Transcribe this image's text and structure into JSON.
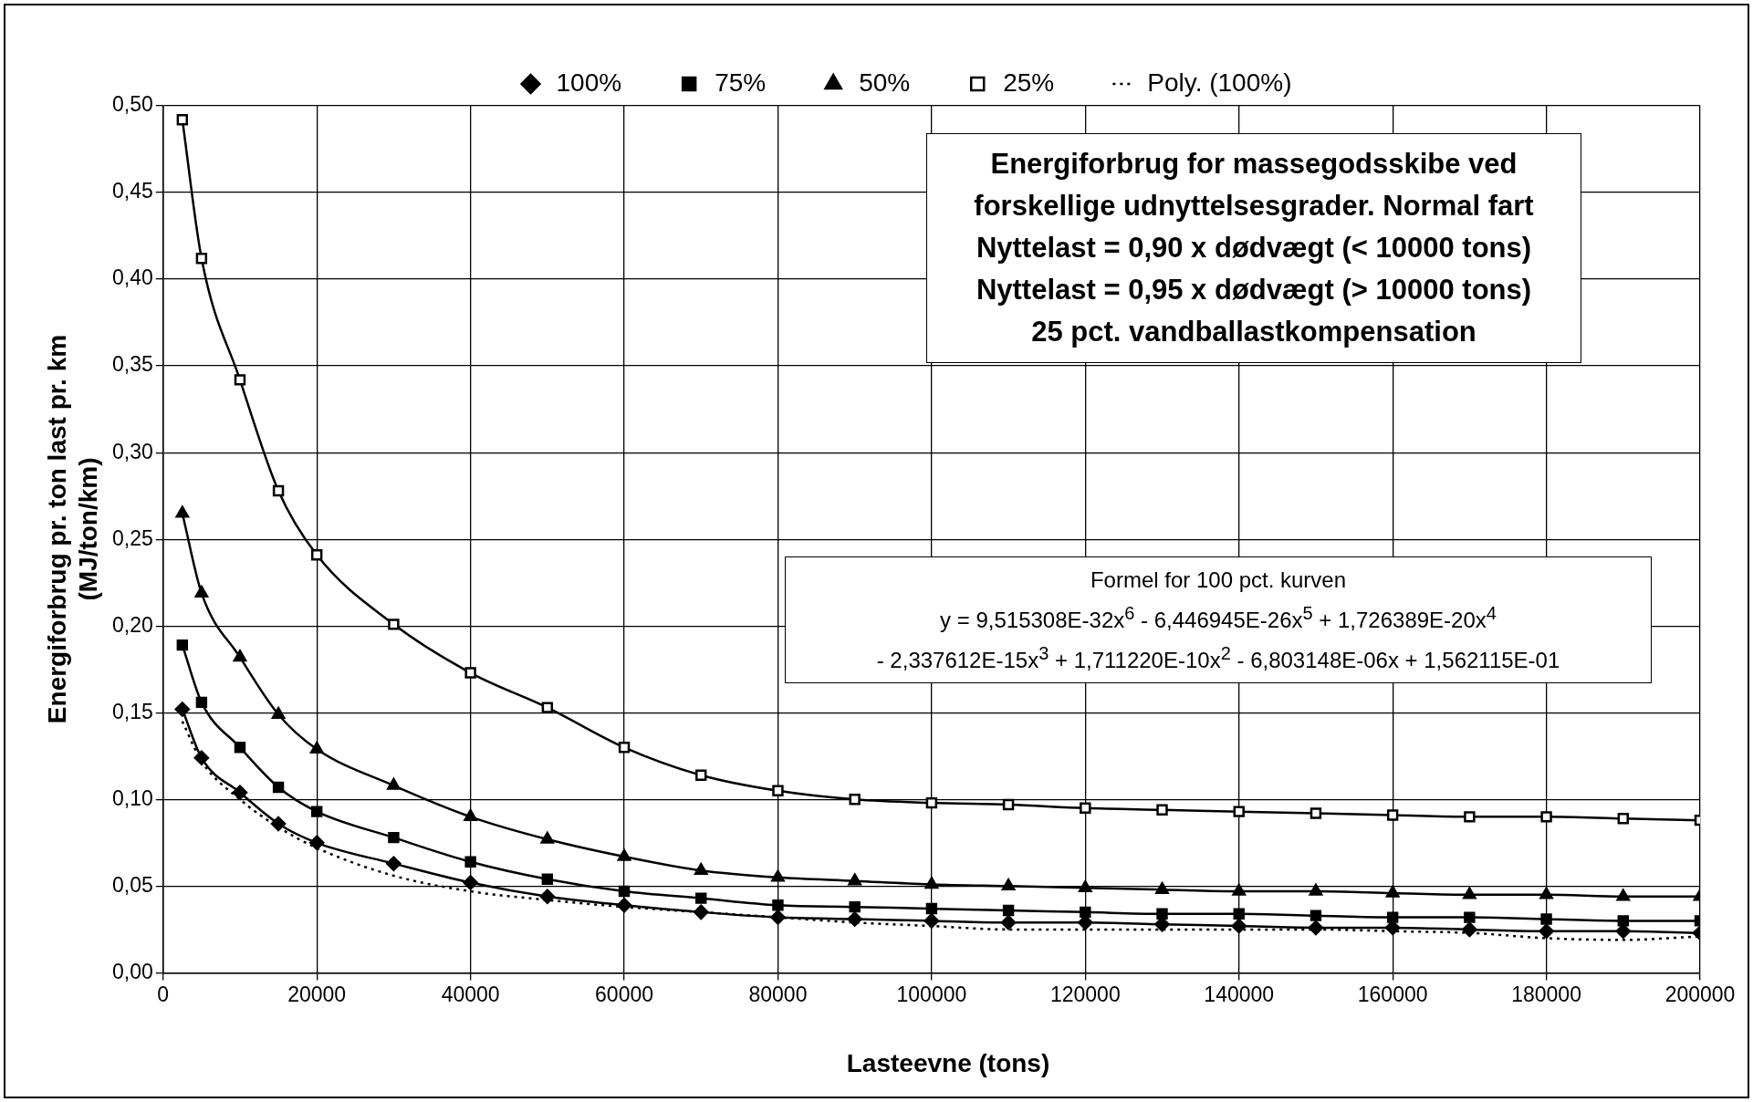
{
  "chart_data": {
    "type": "line",
    "title": "Energiforbrug for massegodsskibe ved forskellige udnyttelsesgrader. Normal fart",
    "subtitle": "Nyttelast = 0,90 x dødvægt (< 10000 tons)\nNyttelast = 0,95 x dødvægt (> 10000 tons)\n25 pct. vandballastkompensation",
    "xlabel": "Lasteevne (tons)",
    "ylabel": "Energiforbrug pr. ton last pr. km\n(MJ/ton/km)",
    "annotations": [
      "Formel for 100 pct. kurven\ny = 9,515308E-32x$^{6}$ - 6,446945E-26x$^{5}$ + 1,726389E-20x$^{4}$\n- 2,337612E-15x$^{3}$ + 1,711220E-10x$^{2}$ - 6,803148E-06x + 1,562115E-01"
    ],
    "x": [
      2500,
      5000,
      10000,
      15000,
      20000,
      30000,
      40000,
      50000,
      60000,
      70000,
      80000,
      90000,
      100000,
      110000,
      120000,
      130000,
      140000,
      150000,
      160000,
      170000,
      180000,
      190000,
      200000
    ],
    "series": [
      {
        "name": "100%",
        "color": "#000000",
        "marker": "diamond",
        "values": [
          0.152,
          0.124,
          0.104,
          0.086,
          0.075,
          0.063,
          0.052,
          0.044,
          0.039,
          0.035,
          0.032,
          0.031,
          0.03,
          0.029,
          0.029,
          0.028,
          0.027,
          0.026,
          0.026,
          0.025,
          0.024,
          0.024,
          0.023
        ]
      },
      {
        "name": "75%",
        "color": "#000000",
        "marker": "square",
        "values": [
          0.189,
          0.156,
          0.13,
          0.107,
          0.093,
          0.078,
          0.064,
          0.054,
          0.047,
          0.043,
          0.039,
          0.038,
          0.037,
          0.036,
          0.035,
          0.034,
          0.034,
          0.033,
          0.032,
          0.032,
          0.031,
          0.03,
          0.03
        ]
      },
      {
        "name": "50%",
        "color": "#000000",
        "marker": "triangle",
        "values": [
          0.265,
          0.219,
          0.182,
          0.149,
          0.129,
          0.108,
          0.09,
          0.077,
          0.067,
          0.059,
          0.055,
          0.053,
          0.051,
          0.05,
          0.049,
          0.048,
          0.047,
          0.047,
          0.046,
          0.045,
          0.045,
          0.044,
          0.044
        ]
      },
      {
        "name": "25%",
        "color": "#000000",
        "marker": "square-open",
        "values": [
          0.492,
          0.412,
          0.342,
          0.278,
          0.241,
          0.201,
          0.173,
          0.153,
          0.13,
          0.114,
          0.105,
          0.1,
          0.098,
          0.097,
          0.095,
          0.094,
          0.093,
          0.092,
          0.091,
          0.09,
          0.09,
          0.089,
          0.088
        ]
      },
      {
        "name": "Poly. (100%)",
        "color": "#000000",
        "marker": "none",
        "line_style": "dotted",
        "values": [
          0.145,
          0.122,
          0.1,
          0.084,
          0.072,
          0.056,
          0.047,
          0.042,
          0.038,
          0.035,
          0.032,
          0.029,
          0.027,
          0.025,
          0.025,
          0.025,
          0.025,
          0.025,
          0.024,
          0.023,
          0.02,
          0.019,
          0.021
        ]
      }
    ],
    "xlim": [
      0,
      200000
    ],
    "xticks": [
      0,
      20000,
      40000,
      60000,
      80000,
      100000,
      120000,
      140000,
      160000,
      180000,
      200000
    ],
    "ylim": [
      0,
      0.5
    ],
    "yticks": [
      {
        "value": 0,
        "label": "0,00"
      },
      {
        "value": 0.05,
        "label": "0,05"
      },
      {
        "value": 0.1,
        "label": "0,10"
      },
      {
        "value": 0.15,
        "label": "0,15"
      },
      {
        "value": 0.2,
        "label": "0,20"
      },
      {
        "value": 0.25,
        "label": "0,25"
      },
      {
        "value": 0.3,
        "label": "0,30"
      },
      {
        "value": 0.35,
        "label": "0,35"
      },
      {
        "value": 0.4,
        "label": "0,40"
      },
      {
        "value": 0.45,
        "label": "0,45"
      },
      {
        "value": 0.5,
        "label": "0,50"
      }
    ],
    "grid": true,
    "legend": "top"
  }
}
